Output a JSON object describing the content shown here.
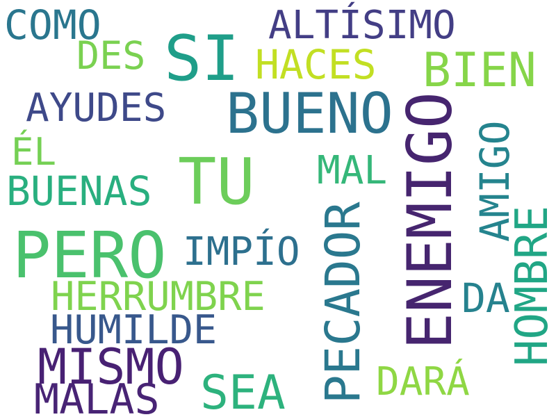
{
  "words": [
    {
      "text": "COMO",
      "color": "#2a768e"
    },
    {
      "text": "ALTÍSIMO",
      "color": "#433e85"
    },
    {
      "text": "SI",
      "color": "#1f9e89"
    },
    {
      "text": "DES",
      "color": "#7ad151"
    },
    {
      "text": "HACES",
      "color": "#c2df23"
    },
    {
      "text": "BIEN",
      "color": "#86d549"
    },
    {
      "text": "AYUDES",
      "color": "#3e4989"
    },
    {
      "text": "BUENO",
      "color": "#2c728e"
    },
    {
      "text": "ÉL",
      "color": "#75d054"
    },
    {
      "text": "TU",
      "color": "#6ccd5a"
    },
    {
      "text": "MAL",
      "color": "#35b779"
    },
    {
      "text": "BUENAS",
      "color": "#29af7f"
    },
    {
      "text": "PERO",
      "color": "#4ac16d"
    },
    {
      "text": "IMPÍO",
      "color": "#2d708e"
    },
    {
      "text": "HERRUMBRE",
      "color": "#7fd34e"
    },
    {
      "text": "HUMILDE",
      "color": "#38588c"
    },
    {
      "text": "DA",
      "color": "#26828e"
    },
    {
      "text": "MISMO",
      "color": "#482173"
    },
    {
      "text": "SEA",
      "color": "#2db27d"
    },
    {
      "text": "MALAS",
      "color": "#482475"
    },
    {
      "text": "DARÁ",
      "color": "#8fd744"
    },
    {
      "text": "PECADOR",
      "color": "#2a788e"
    },
    {
      "text": "ENEMIGO",
      "color": "#46256f"
    },
    {
      "text": "AMIGO",
      "color": "#25848e"
    },
    {
      "text": "HOMBRE",
      "color": "#21a685"
    }
  ]
}
